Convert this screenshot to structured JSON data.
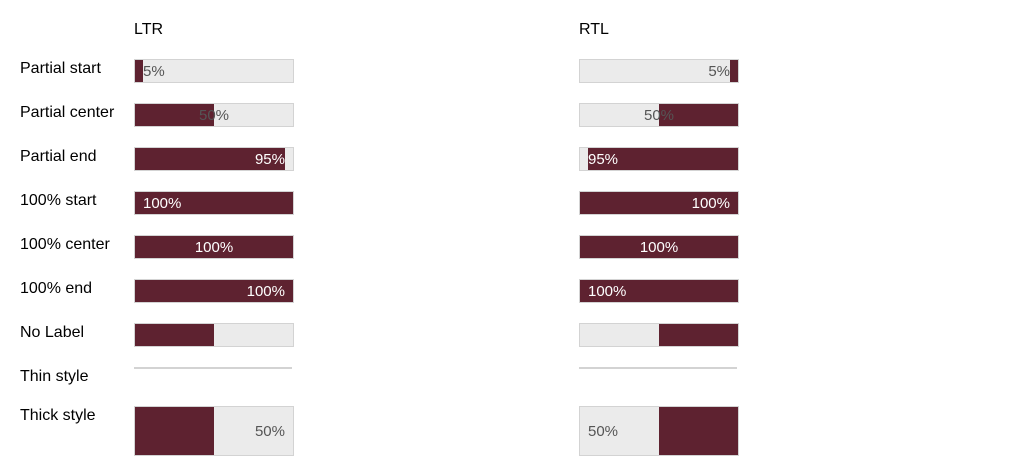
{
  "columns": {
    "ltr": "LTR",
    "rtl": "RTL"
  },
  "rows": [
    {
      "label": "Partial start"
    },
    {
      "label": "Partial center"
    },
    {
      "label": "Partial end"
    },
    {
      "label": "100% start"
    },
    {
      "label": "100% center"
    },
    {
      "label": "100% end"
    },
    {
      "label": "No Label"
    },
    {
      "label": "Thin style"
    },
    {
      "label": "Thick style"
    }
  ],
  "bars": {
    "partial_start": {
      "value": 0.05,
      "text": "5%"
    },
    "partial_center": {
      "value": 0.5,
      "text": "50%"
    },
    "partial_end": {
      "value": 0.95,
      "text": "95%"
    },
    "full_start": {
      "value": 1.0,
      "text": "100%"
    },
    "full_center": {
      "value": 1.0,
      "text": "100%"
    },
    "full_end": {
      "value": 1.0,
      "text": "100%"
    },
    "no_label": {
      "value": 0.5
    },
    "thin": {
      "value": 0.0
    },
    "thick": {
      "value": 0.5,
      "text": "50%"
    }
  },
  "colors": {
    "fill": "#5e2230",
    "track": "#ebebeb",
    "border": "#d3d3d3"
  }
}
